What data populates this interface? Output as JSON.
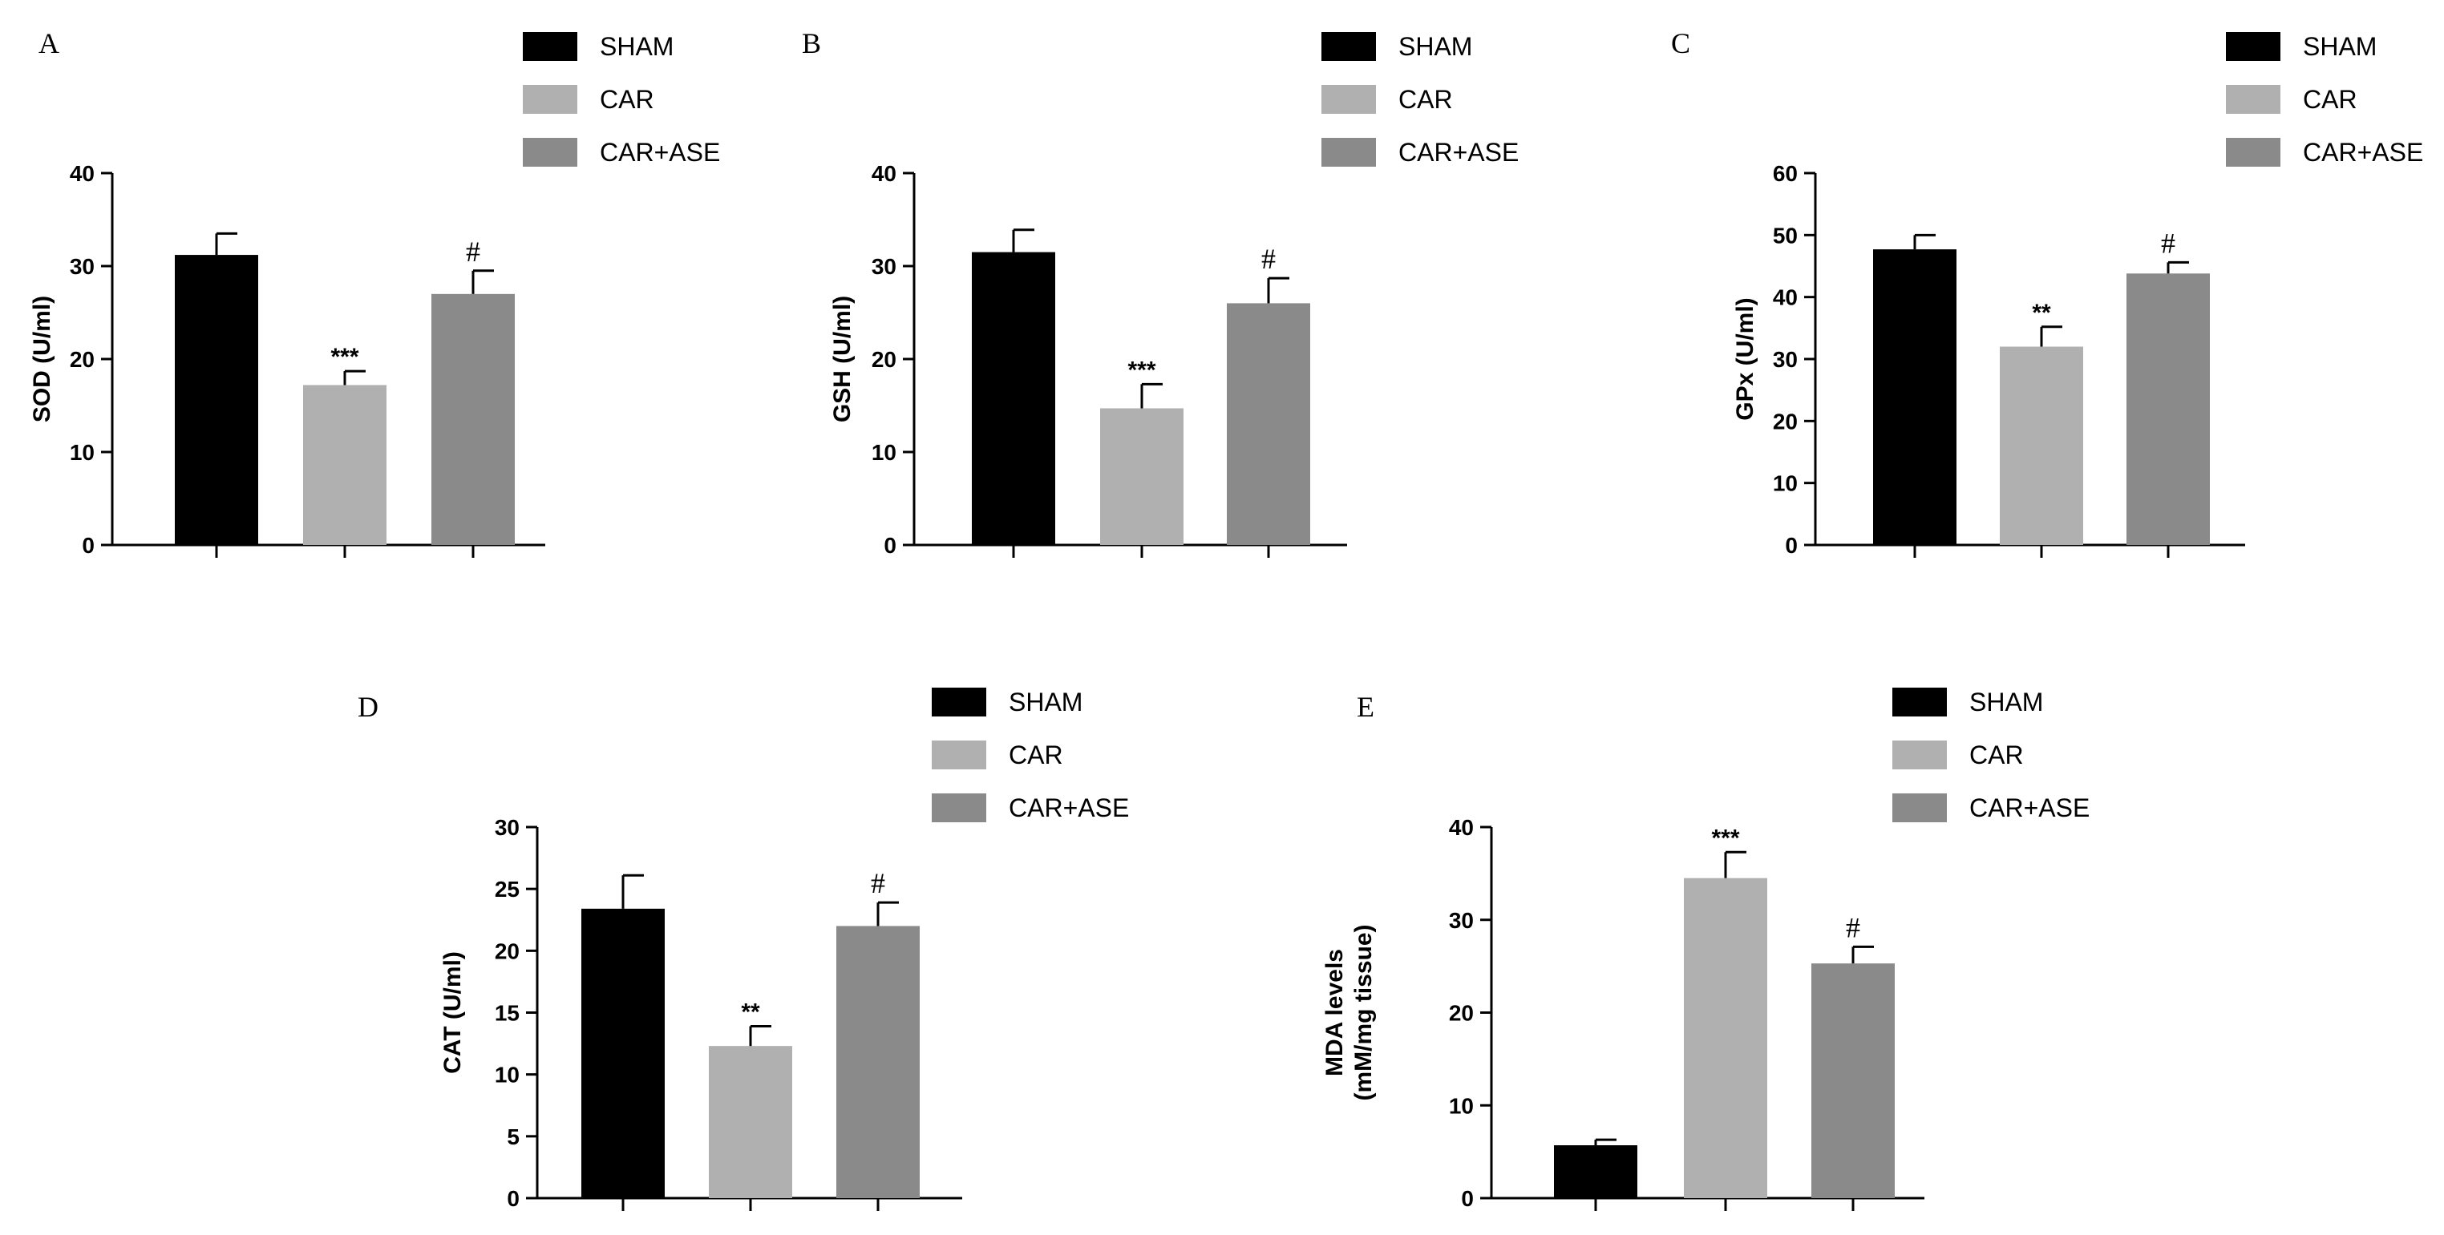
{
  "colors": {
    "SHAM": "#000000",
    "CAR": "#b0b0b0",
    "CAR+ASE": "#8a8a8a",
    "axis": "#000000"
  },
  "chart_data": [
    {
      "panel": "A",
      "type": "bar",
      "categories": [
        "SHAM",
        "CAR",
        "CAR+ASE"
      ],
      "values": [
        31.2,
        17.2,
        27.0
      ],
      "errors": [
        2.3,
        1.5,
        2.5
      ],
      "significance": [
        "",
        "***",
        "#"
      ],
      "legend": [
        "SHAM",
        "CAR",
        "CAR+ASE"
      ],
      "ylabel": "SOD (U/ml)",
      "ylim": [
        0,
        40
      ],
      "yticks": [
        0,
        10,
        20,
        30,
        40
      ],
      "xlabel": ""
    },
    {
      "panel": "B",
      "type": "bar",
      "categories": [
        "SHAM",
        "CAR",
        "CAR+ASE"
      ],
      "values": [
        31.5,
        14.7,
        26.0
      ],
      "errors": [
        2.4,
        2.6,
        2.7
      ],
      "significance": [
        "",
        "***",
        "#"
      ],
      "legend": [
        "SHAM",
        "CAR",
        "CAR+ASE"
      ],
      "ylabel": "GSH (U/ml)",
      "ylim": [
        0,
        40
      ],
      "yticks": [
        0,
        10,
        20,
        30,
        40
      ],
      "xlabel": ""
    },
    {
      "panel": "C",
      "type": "bar",
      "categories": [
        "SHAM",
        "CAR",
        "CAR+ASE"
      ],
      "values": [
        47.7,
        32.0,
        43.8
      ],
      "errors": [
        2.3,
        3.2,
        1.8
      ],
      "significance": [
        "",
        "**",
        "#"
      ],
      "legend": [
        "SHAM",
        "CAR",
        "CAR+ASE"
      ],
      "ylabel": "GPx (U/ml)",
      "ylim": [
        0,
        60
      ],
      "yticks": [
        0,
        10,
        20,
        30,
        40,
        50,
        60
      ],
      "xlabel": ""
    },
    {
      "panel": "D",
      "type": "bar",
      "categories": [
        "SHAM",
        "CAR",
        "CAR+ASE"
      ],
      "values": [
        23.4,
        12.3,
        22.0
      ],
      "errors": [
        2.7,
        1.6,
        1.9
      ],
      "significance": [
        "",
        "**",
        "#"
      ],
      "legend": [
        "SHAM",
        "CAR",
        "CAR+ASE"
      ],
      "ylabel": "CAT (U/ml)",
      "ylim": [
        0,
        30
      ],
      "yticks": [
        0,
        5,
        10,
        15,
        20,
        25,
        30
      ],
      "xlabel": ""
    },
    {
      "panel": "E",
      "type": "bar",
      "categories": [
        "SHAM",
        "CAR",
        "CAR+ASE"
      ],
      "values": [
        5.7,
        34.5,
        25.3
      ],
      "errors": [
        0.6,
        2.8,
        1.8
      ],
      "significance": [
        "",
        "***",
        "#"
      ],
      "legend": [
        "SHAM",
        "CAR",
        "CAR+ASE"
      ],
      "ylabel": "MDA levels",
      "ylabel2": "(mM/mg tissue)",
      "ylim": [
        0,
        40
      ],
      "yticks": [
        0,
        10,
        20,
        30,
        40
      ],
      "xlabel": ""
    }
  ]
}
